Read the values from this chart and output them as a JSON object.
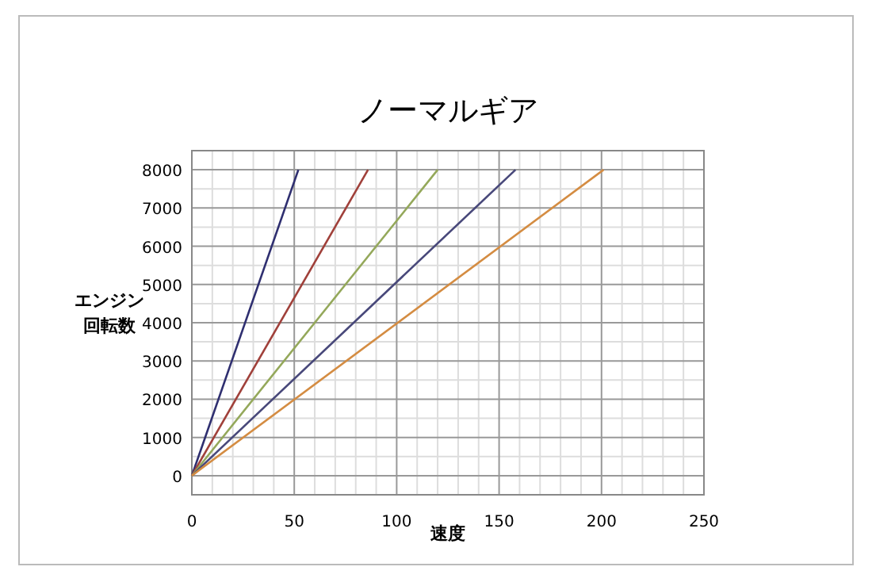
{
  "chart_data": {
    "type": "line",
    "title": "ノーマルギア",
    "xlabel": "速度",
    "ylabel": "エンジン回転数",
    "xlim": [
      0,
      250
    ],
    "xticks": [
      0,
      50,
      100,
      150,
      200,
      250
    ],
    "ylim": [
      -500,
      8500
    ],
    "yticks": [
      0,
      1000,
      2000,
      3000,
      4000,
      5000,
      6000,
      7000,
      8000
    ],
    "grid": true,
    "series": [
      {
        "color": "#2f2f70",
        "x": [
          0,
          52
        ],
        "values": [
          0,
          8000
        ]
      },
      {
        "color": "#a0403a",
        "x": [
          0,
          86
        ],
        "values": [
          0,
          8000
        ]
      },
      {
        "color": "#94a85a",
        "x": [
          0,
          120
        ],
        "values": [
          0,
          8000
        ]
      },
      {
        "color": "#48487a",
        "x": [
          0,
          158
        ],
        "values": [
          0,
          8000
        ]
      },
      {
        "color": "#d48c42",
        "x": [
          0,
          201
        ],
        "values": [
          0,
          8000
        ]
      }
    ]
  }
}
